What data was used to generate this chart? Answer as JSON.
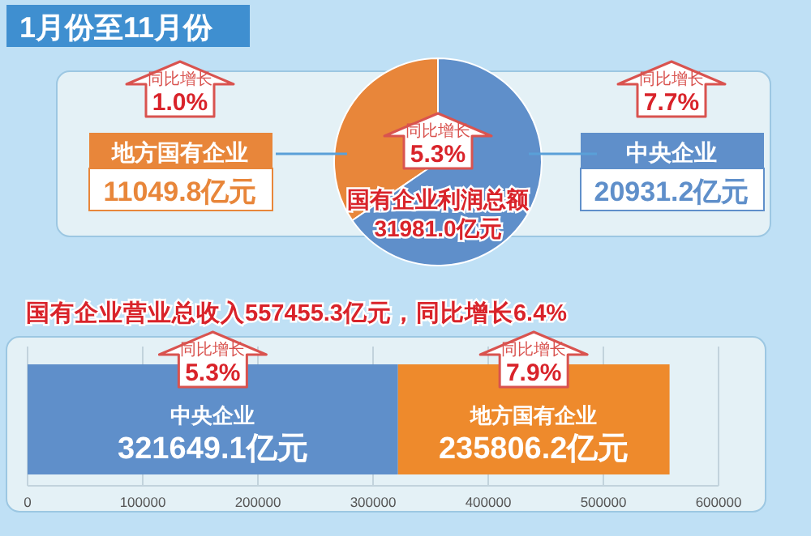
{
  "chart_data": [
    {
      "type": "pie",
      "title": "1月份至11月份",
      "categories": [
        "地方国有企业",
        "中央企业"
      ],
      "values": [
        11049.8,
        20931.2
      ],
      "colors": [
        "#e8863a",
        "#5f8fca"
      ],
      "value_labels": [
        "11049.8亿元",
        "20931.2亿元"
      ],
      "annotations": [
        "同比增长",
        "1.0%",
        "同比增长",
        "7.7%",
        "同比增长",
        "5.3%",
        "国有企业利润总额",
        "31981.0亿元"
      ]
    },
    {
      "type": "bar",
      "title": "国有企业营业总收入557455.3亿元，同比增长6.4%",
      "orientation": "horizontal",
      "stacked": true,
      "categories": [
        null
      ],
      "series": [
        {
          "name": "中央企业",
          "color": "#5f8fca",
          "values": [
            321649.1
          ],
          "value_labels": [
            "321649.1亿元"
          ]
        },
        {
          "name": "地方国有企业",
          "color": "#ee8a2c",
          "values": [
            235806.2
          ],
          "value_labels": [
            "235806.2亿元"
          ]
        }
      ],
      "xlim": [
        0,
        600000
      ],
      "xticks": [
        0,
        100000,
        200000,
        300000,
        400000,
        500000,
        600000
      ],
      "grid": "x",
      "annotations": [
        "同比增长",
        "5.3%",
        "同比增长",
        "7.9%"
      ]
    }
  ]
}
